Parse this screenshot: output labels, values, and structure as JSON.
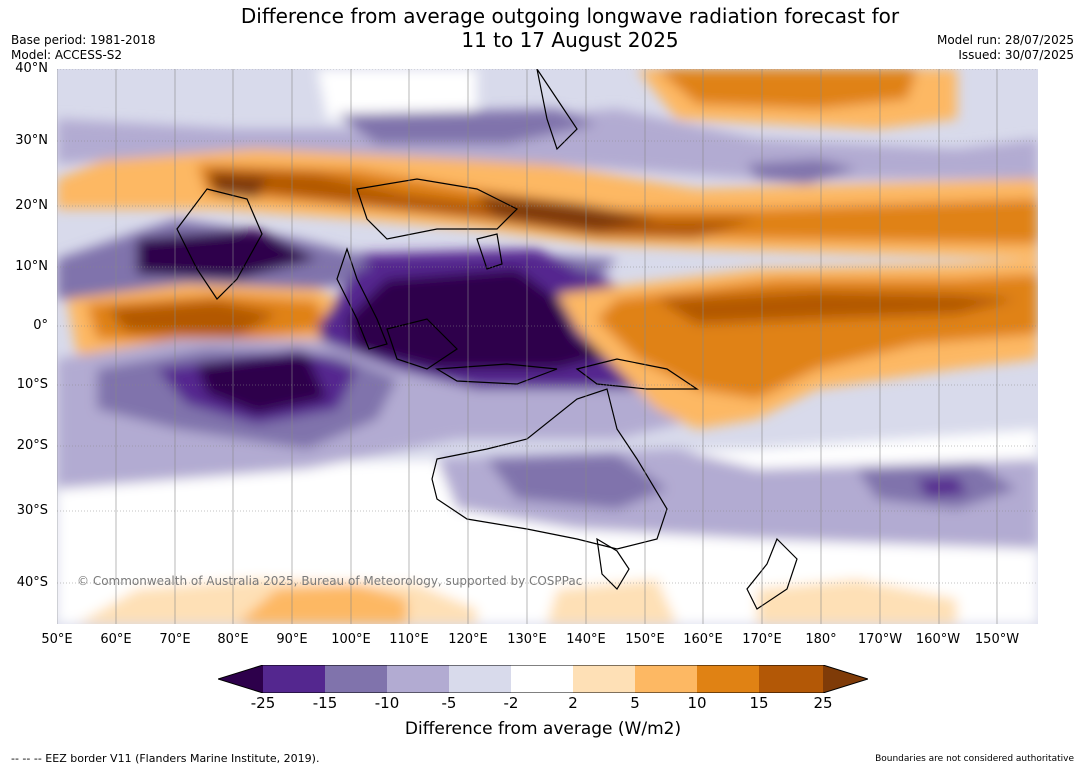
{
  "title_line1": "Difference from average outgoing longwave radiation forecast for",
  "title_line2": "11 to 17 August 2025",
  "base_period": "Base period: 1981-2018",
  "model": "Model: ACCESS-S2",
  "model_run": "Model run: 28/07/2025",
  "issued": "Issued: 30/07/2025",
  "copyright": "© Commonwealth of Australia 2025, Bureau of Meteorology, supported by COSPPac",
  "lat_labels": [
    "40°N",
    "30°N",
    "20°N",
    "10°N",
    "0°",
    "10°S",
    "20°S",
    "30°S",
    "40°S"
  ],
  "lon_labels": [
    "50°E",
    "60°E",
    "70°E",
    "80°E",
    "90°E",
    "100°E",
    "110°E",
    "120°E",
    "130°E",
    "140°E",
    "150°E",
    "160°E",
    "170°E",
    "180°",
    "170°W",
    "160°W",
    "150°W"
  ],
  "colorbar": {
    "ticks": [
      "-25",
      "-15",
      "-10",
      "-5",
      "-2",
      "2",
      "5",
      "10",
      "15",
      "25"
    ],
    "colors": [
      "#2d004b",
      "#54278f",
      "#8073ac",
      "#b2abd2",
      "#d8daeb",
      "#ffffff",
      "#fee0b6",
      "#fdb863",
      "#e08214",
      "#b35806",
      "#7f3b08"
    ],
    "label": "Difference from average (W/m2)"
  },
  "footer_left": "--  --  -- EEZ border V11 (Flanders Marine Institute, 2019).",
  "footer_right": "Boundaries are not considered authoritative"
}
